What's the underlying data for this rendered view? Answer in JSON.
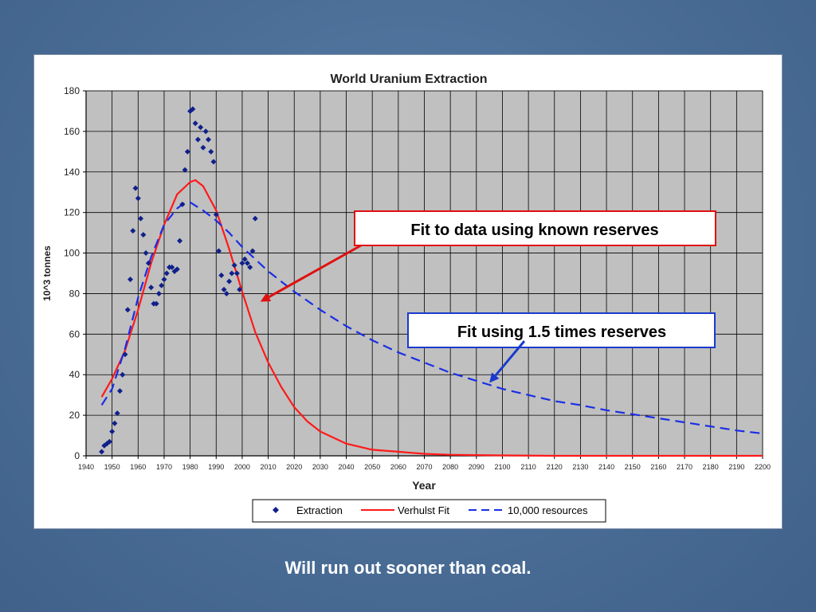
{
  "caption": "Will run out sooner than coal.",
  "colors": {
    "extraction": "#10208a",
    "verhulst": "#ff1a1a",
    "resources": "#1a2ee6",
    "plot_bg": "#c0c0c0",
    "annotation_red": "#e01010",
    "annotation_blue": "#1a3acc"
  },
  "chart_data": {
    "type": "scatter",
    "title": "World Uranium Extraction",
    "xlabel": "Year",
    "ylabel": "10^3 tonnes",
    "xlim": [
      1940,
      2200
    ],
    "ylim": [
      0,
      180
    ],
    "x_ticks": [
      1940,
      1950,
      1960,
      1970,
      1980,
      1990,
      2000,
      2010,
      2020,
      2030,
      2040,
      2050,
      2060,
      2070,
      2080,
      2090,
      2100,
      2110,
      2120,
      2130,
      2140,
      2150,
      2160,
      2170,
      2180,
      2190,
      2200
    ],
    "y_ticks": [
      0,
      20,
      40,
      60,
      80,
      100,
      120,
      140,
      160,
      180
    ],
    "grid": true,
    "legend_position": "bottom",
    "legend": [
      "Extraction",
      "Verhulst Fit",
      "10,000 resources"
    ],
    "series": [
      {
        "name": "Extraction",
        "style": "markers",
        "points": [
          [
            1946,
            2
          ],
          [
            1947,
            5
          ],
          [
            1948,
            6
          ],
          [
            1949,
            7
          ],
          [
            1950,
            12
          ],
          [
            1951,
            16
          ],
          [
            1952,
            21
          ],
          [
            1953,
            32
          ],
          [
            1954,
            40
          ],
          [
            1955,
            50
          ],
          [
            1956,
            72
          ],
          [
            1957,
            87
          ],
          [
            1958,
            111
          ],
          [
            1959,
            132
          ],
          [
            1960,
            127
          ],
          [
            1961,
            117
          ],
          [
            1962,
            109
          ],
          [
            1963,
            100
          ],
          [
            1964,
            95
          ],
          [
            1965,
            83
          ],
          [
            1966,
            75
          ],
          [
            1967,
            75
          ],
          [
            1968,
            80
          ],
          [
            1969,
            84
          ],
          [
            1970,
            87
          ],
          [
            1971,
            90
          ],
          [
            1972,
            93
          ],
          [
            1973,
            93
          ],
          [
            1974,
            91
          ],
          [
            1975,
            92
          ],
          [
            1976,
            106
          ],
          [
            1977,
            124
          ],
          [
            1978,
            141
          ],
          [
            1979,
            150
          ],
          [
            1980,
            170
          ],
          [
            1981,
            171
          ],
          [
            1982,
            164
          ],
          [
            1983,
            156
          ],
          [
            1984,
            162
          ],
          [
            1985,
            152
          ],
          [
            1986,
            160
          ],
          [
            1987,
            156
          ],
          [
            1988,
            150
          ],
          [
            1989,
            145
          ],
          [
            1990,
            119
          ],
          [
            1991,
            101
          ],
          [
            1992,
            89
          ],
          [
            1993,
            82
          ],
          [
            1994,
            80
          ],
          [
            1995,
            86
          ],
          [
            1996,
            90
          ],
          [
            1997,
            94
          ],
          [
            1998,
            90
          ],
          [
            1999,
            82
          ],
          [
            2000,
            95
          ],
          [
            2001,
            97
          ],
          [
            2002,
            95
          ],
          [
            2003,
            93
          ],
          [
            2004,
            101
          ],
          [
            2005,
            117
          ]
        ]
      },
      {
        "name": "Verhulst Fit",
        "style": "line",
        "points": [
          [
            1946,
            29
          ],
          [
            1950,
            38
          ],
          [
            1955,
            52
          ],
          [
            1960,
            72
          ],
          [
            1965,
            95
          ],
          [
            1970,
            114
          ],
          [
            1975,
            129
          ],
          [
            1980,
            135
          ],
          [
            1982,
            136
          ],
          [
            1985,
            133
          ],
          [
            1990,
            121
          ],
          [
            1995,
            102
          ],
          [
            2000,
            81
          ],
          [
            2005,
            61
          ],
          [
            2010,
            46
          ],
          [
            2015,
            34
          ],
          [
            2020,
            24
          ],
          [
            2025,
            17
          ],
          [
            2030,
            12
          ],
          [
            2040,
            6
          ],
          [
            2050,
            3
          ],
          [
            2060,
            2
          ],
          [
            2070,
            1
          ],
          [
            2080,
            0.5
          ],
          [
            2100,
            0.2
          ],
          [
            2120,
            0
          ],
          [
            2200,
            0
          ]
        ]
      },
      {
        "name": "10,000 resources",
        "style": "dashed",
        "points": [
          [
            1946,
            25
          ],
          [
            1950,
            33
          ],
          [
            1955,
            53
          ],
          [
            1960,
            78
          ],
          [
            1965,
            98
          ],
          [
            1970,
            114
          ],
          [
            1975,
            122
          ],
          [
            1978,
            125
          ],
          [
            1980,
            125
          ],
          [
            1985,
            121
          ],
          [
            1990,
            116
          ],
          [
            1995,
            110
          ],
          [
            2000,
            103
          ],
          [
            2010,
            91
          ],
          [
            2020,
            81
          ],
          [
            2030,
            72
          ],
          [
            2040,
            64
          ],
          [
            2050,
            57
          ],
          [
            2060,
            51
          ],
          [
            2070,
            46
          ],
          [
            2080,
            41
          ],
          [
            2090,
            37
          ],
          [
            2100,
            33
          ],
          [
            2110,
            30
          ],
          [
            2120,
            27
          ],
          [
            2130,
            25
          ],
          [
            2140,
            22.5
          ],
          [
            2150,
            20.5
          ],
          [
            2160,
            18.5
          ],
          [
            2170,
            16.5
          ],
          [
            2180,
            14.5
          ],
          [
            2190,
            12.5
          ],
          [
            2200,
            11
          ]
        ]
      }
    ],
    "annotations": [
      {
        "text": "Fit to data using known reserves",
        "arrow_to": [
          2007,
          76
        ]
      },
      {
        "text": "Fit using 1.5 times reserves",
        "arrow_to": [
          2095,
          36
        ]
      }
    ]
  }
}
